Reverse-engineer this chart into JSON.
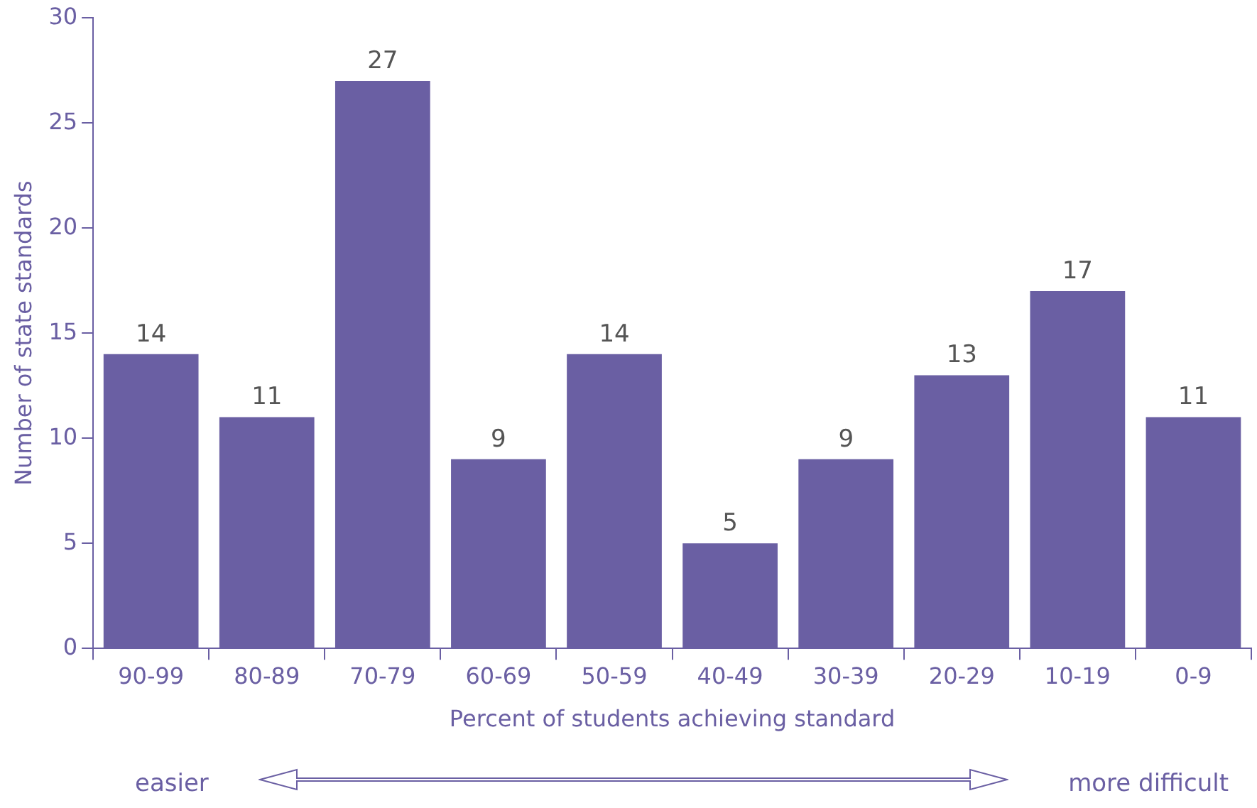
{
  "chart_data": {
    "type": "bar",
    "xlabel": "Percent of students achieving standard",
    "ylabel": "Number of state standards",
    "categories": [
      "90-99",
      "80-89",
      "70-79",
      "60-69",
      "50-59",
      "40-49",
      "30-39",
      "20-29",
      "10-19",
      "0-9"
    ],
    "values": [
      14,
      11,
      27,
      9,
      14,
      5,
      9,
      13,
      17,
      11
    ],
    "color": "#6a5fa3",
    "ylim": [
      0,
      30
    ],
    "yticks": [
      0,
      5,
      10,
      15,
      20,
      25,
      30
    ],
    "grid": false,
    "legend": false,
    "data_labels": true,
    "annotations": [
      "easier",
      "more difficult"
    ]
  }
}
